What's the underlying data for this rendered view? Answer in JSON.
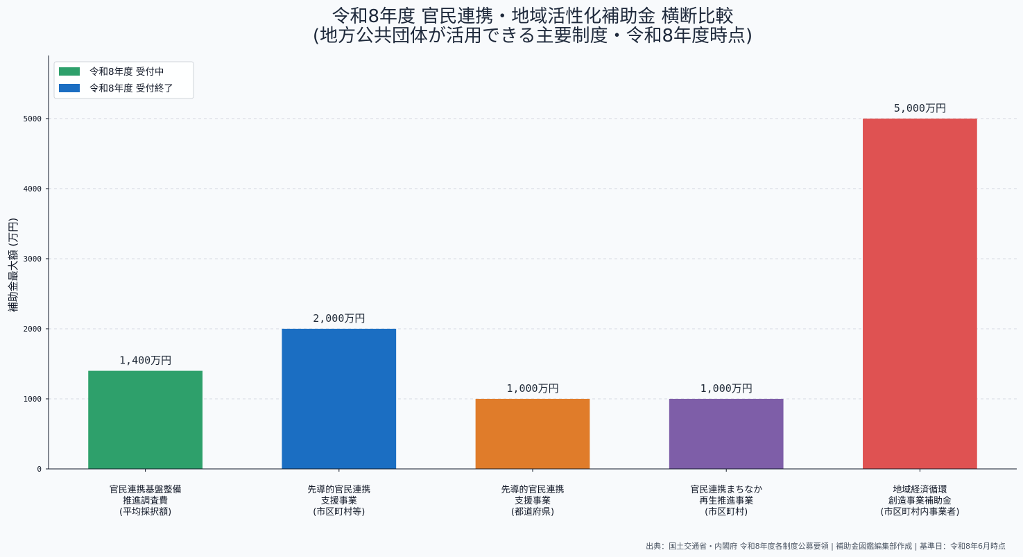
{
  "title_line1": "令和8年度 官民連携・地域活性化補助金 横断比較",
  "title_line2": "(地方公共団体が活用できる主要制度・令和8年度時点)",
  "footer": "出典：国土交通省・内閣府 令和8年度各制度公募要領 | 補助金図鑑編集部作成 | 基準日：令和8年6月時点",
  "colors": {
    "open": "#2ea06b",
    "closed": "#1b6ec2",
    "orange": "#e07c2a",
    "purple": "#7e5ea8",
    "red": "#df5252",
    "grid": "#d6dbe2"
  },
  "chart_data": {
    "type": "bar",
    "title": "令和8年度 官民連携・地域活性化補助金 横断比較 (地方公共団体が活用できる主要制度・令和8年度時点)",
    "ylabel": "補助金最大額 (万円)",
    "xlabel": "",
    "ylim": [
      0,
      5900
    ],
    "yticks": [
      0,
      1000,
      2000,
      3000,
      4000,
      5000
    ],
    "grid": "horizontal dashed",
    "legend_position": "top-left",
    "legend": [
      {
        "label": "令和8年度 受付中",
        "color": "#2ea06b"
      },
      {
        "label": "令和8年度 受付終了",
        "color": "#1b6ec2"
      }
    ],
    "categories": [
      [
        "官民連携基盤整備",
        "推進調査費",
        "(平均採択額)"
      ],
      [
        "先導的官民連携",
        "支援事業",
        "(市区町村等)"
      ],
      [
        "先導的官民連携",
        "支援事業",
        "(都道府県)"
      ],
      [
        "官民連携まちなか",
        "再生推進事業",
        "(市区町村)"
      ],
      [
        "地域経済循環",
        "創造事業補助金",
        "(市区町村内事業者)"
      ]
    ],
    "values": [
      1400,
      2000,
      1000,
      1000,
      5000
    ],
    "value_labels": [
      "1,400万円",
      "2,000万円",
      "1,000万円",
      "1,000万円",
      "5,000万円"
    ],
    "bar_colors": [
      "#2ea06b",
      "#1b6ec2",
      "#e07c2a",
      "#7e5ea8",
      "#df5252"
    ]
  }
}
